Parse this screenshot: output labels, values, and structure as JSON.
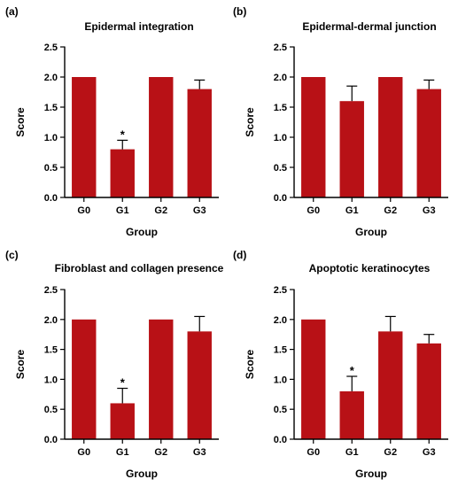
{
  "figure": {
    "panels": [
      {
        "letter": "(a)",
        "title": "Epidermal integration"
      },
      {
        "letter": "(b)",
        "title": "Epidermal-dermal junction"
      },
      {
        "letter": "(c)",
        "title": "Fibroblast and collagen presence"
      },
      {
        "letter": "(d)",
        "title": "Apoptotic keratinocytes"
      }
    ]
  },
  "colors": {
    "bar": "#b81116",
    "axis": "#000000"
  },
  "chart_data": [
    {
      "type": "bar",
      "title": "Epidermal integration",
      "xlabel": "Group",
      "ylabel": "Score",
      "categories": [
        "G0",
        "G1",
        "G2",
        "G3"
      ],
      "values": [
        2.0,
        0.8,
        2.0,
        1.8
      ],
      "errors": [
        0,
        0.15,
        0,
        0.15
      ],
      "significance": [
        "",
        "*",
        "",
        ""
      ],
      "ylim": [
        0,
        2.5
      ],
      "yticks": [
        "0.0",
        "0.5",
        "1.0",
        "1.5",
        "2.0",
        "2.5"
      ],
      "grid": false
    },
    {
      "type": "bar",
      "title": "Epidermal-dermal junction",
      "xlabel": "Group",
      "ylabel": "Score",
      "categories": [
        "G0",
        "G1",
        "G2",
        "G3"
      ],
      "values": [
        2.0,
        1.6,
        2.0,
        1.8
      ],
      "errors": [
        0,
        0.25,
        0,
        0.15
      ],
      "significance": [
        "",
        "",
        "",
        ""
      ],
      "ylim": [
        0,
        2.5
      ],
      "yticks": [
        "0.0",
        "0.5",
        "1.0",
        "1.5",
        "2.0",
        "2.5"
      ],
      "grid": false
    },
    {
      "type": "bar",
      "title": "Fibroblast and collagen presence",
      "xlabel": "Group",
      "ylabel": "Score",
      "categories": [
        "G0",
        "G1",
        "G2",
        "G3"
      ],
      "values": [
        2.0,
        0.6,
        2.0,
        1.8
      ],
      "errors": [
        0,
        0.25,
        0,
        0.25
      ],
      "significance": [
        "",
        "*",
        "",
        ""
      ],
      "ylim": [
        0,
        2.5
      ],
      "yticks": [
        "0.0",
        "0.5",
        "1.0",
        "1.5",
        "2.0",
        "2.5"
      ],
      "grid": false
    },
    {
      "type": "bar",
      "title": "Apoptotic keratinocytes",
      "xlabel": "Group",
      "ylabel": "Score",
      "categories": [
        "G0",
        "G1",
        "G2",
        "G3"
      ],
      "values": [
        2.0,
        0.8,
        1.8,
        1.6
      ],
      "errors": [
        0,
        0.25,
        0.25,
        0.15
      ],
      "significance": [
        "",
        "*",
        "",
        ""
      ],
      "ylim": [
        0,
        2.5
      ],
      "yticks": [
        "0.0",
        "0.5",
        "1.0",
        "1.5",
        "2.0",
        "2.5"
      ],
      "grid": false
    }
  ]
}
